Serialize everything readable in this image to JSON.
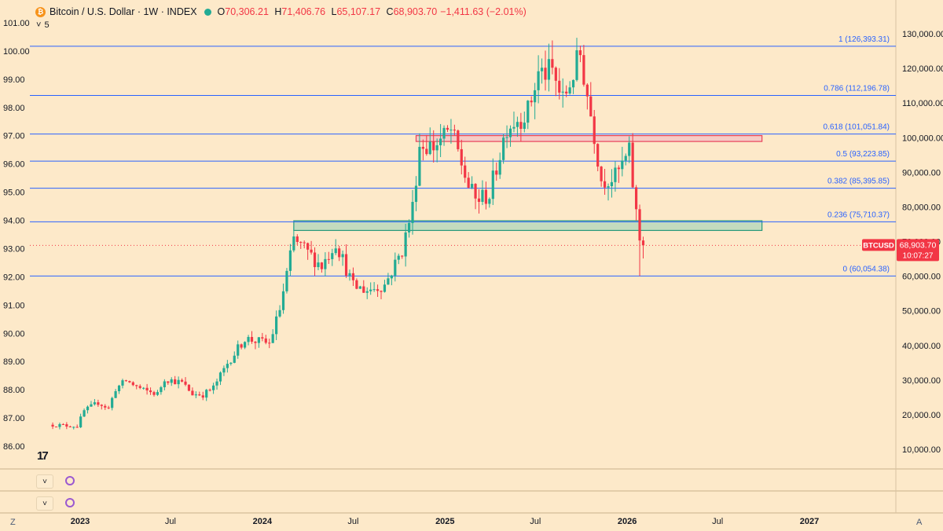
{
  "header": {
    "symbol": "Bitcoin / U.S. Dollar · 1W · INDEX",
    "coin_icon": "bitcoin-icon",
    "open_label": "O",
    "open": "70,306.21",
    "high_label": "H",
    "high": "71,406.76",
    "low_label": "L",
    "low": "65,107.17",
    "close_label": "C",
    "close": "68,903.70",
    "change": "−1,411.63 (−2.01%)",
    "indicator_count": "5"
  },
  "chart_data": {
    "type": "candlestick",
    "x_axis": {
      "labels": [
        {
          "label": "2023",
          "bold": true,
          "date": "2023-01-01"
        },
        {
          "label": "Jul",
          "bold": false,
          "date": "2023-07-01"
        },
        {
          "label": "2024",
          "bold": true,
          "date": "2024-01-01"
        },
        {
          "label": "Jul",
          "bold": false,
          "date": "2024-07-01"
        },
        {
          "label": "2025",
          "bold": true,
          "date": "2025-01-01"
        },
        {
          "label": "Jul",
          "bold": false,
          "date": "2025-07-01"
        },
        {
          "label": "2026",
          "bold": true,
          "date": "2026-01-01"
        },
        {
          "label": "Jul",
          "bold": false,
          "date": "2026-07-01"
        },
        {
          "label": "2027",
          "bold": true,
          "date": "2027-01-01"
        }
      ]
    },
    "right_axis": {
      "ticks": [
        "10,000.00",
        "20,000.00",
        "30,000.00",
        "40,000.00",
        "50,000.00",
        "60,000.00",
        "70,000.00",
        "80,000.00",
        "90,000.00",
        "100,000.00",
        "110,000.00",
        "120,000.00",
        "130,000.00"
      ],
      "values": [
        10000,
        20000,
        30000,
        40000,
        50000,
        60000,
        70000,
        80000,
        90000,
        100000,
        110000,
        120000,
        130000
      ],
      "range": [
        5000,
        134000
      ]
    },
    "left_axis": {
      "ticks": [
        "86.00",
        "87.00",
        "88.00",
        "89.00",
        "90.00",
        "91.00",
        "92.00",
        "93.00",
        "94.00",
        "95.00",
        "96.00",
        "97.00",
        "98.00",
        "99.00",
        "100.00",
        "101.00"
      ],
      "values": [
        86,
        87,
        88,
        89,
        90,
        91,
        92,
        93,
        94,
        95,
        96,
        97,
        98,
        99,
        100,
        101
      ]
    },
    "fib_levels": [
      {
        "label": "1 (126,393.31)",
        "value": 126393.31
      },
      {
        "label": "0.786 (112,196.78)",
        "value": 112196.78
      },
      {
        "label": "0.618 (101,051.84)",
        "value": 101051.84
      },
      {
        "label": "0.5 (93,223.85)",
        "value": 93223.85
      },
      {
        "label": "0.382 (85,395.85)",
        "value": 85395.85
      },
      {
        "label": "0.236 (75,710.37)",
        "value": 75710.37
      },
      {
        "label": "0 (60,054.38)",
        "value": 60054.38
      }
    ],
    "zones": [
      {
        "name": "resistance",
        "from_date": "2024-11-04",
        "to_date": "2026-09-28",
        "low": 98900,
        "high": 100600,
        "fill": "#f5c6c4",
        "stroke": "#e8435a"
      },
      {
        "name": "support",
        "from_date": "2024-03-04",
        "to_date": "2026-09-28",
        "low": 73200,
        "high": 76000,
        "fill": "#b9d8bc",
        "stroke": "#2a9a7a"
      }
    ],
    "last_price": {
      "label": "BTCUSD",
      "value": 68903.7,
      "price_text": "68,903.70",
      "countdown": "10:07:27"
    },
    "anchors": [
      {
        "date": "2022-11-07",
        "price": 17100
      },
      {
        "date": "2022-12-05",
        "price": 16900
      },
      {
        "date": "2023-01-02",
        "price": 16700
      },
      {
        "date": "2023-01-16",
        "price": 21100
      },
      {
        "date": "2023-02-13",
        "price": 23500
      },
      {
        "date": "2023-03-06",
        "price": 21800
      },
      {
        "date": "2023-03-20",
        "price": 27500
      },
      {
        "date": "2023-04-10",
        "price": 29800
      },
      {
        "date": "2023-05-15",
        "price": 27000
      },
      {
        "date": "2023-06-12",
        "price": 26000
      },
      {
        "date": "2023-06-26",
        "price": 30400
      },
      {
        "date": "2023-07-31",
        "price": 29200
      },
      {
        "date": "2023-08-21",
        "price": 26000
      },
      {
        "date": "2023-09-11",
        "price": 25800
      },
      {
        "date": "2023-10-02",
        "price": 27800
      },
      {
        "date": "2023-10-30",
        "price": 34800
      },
      {
        "date": "2023-12-04",
        "price": 42000
      },
      {
        "date": "2024-01-22",
        "price": 40500
      },
      {
        "date": "2024-02-12",
        "price": 50500
      },
      {
        "date": "2024-03-11",
        "price": 70500
      },
      {
        "date": "2024-05-06",
        "price": 63000
      },
      {
        "date": "2024-06-03",
        "price": 70000
      },
      {
        "date": "2024-07-08",
        "price": 57000
      },
      {
        "date": "2024-08-05",
        "price": 56000
      },
      {
        "date": "2024-09-09",
        "price": 57500
      },
      {
        "date": "2024-10-14",
        "price": 67500
      },
      {
        "date": "2024-11-04",
        "price": 80000
      },
      {
        "date": "2024-11-18",
        "price": 98000
      },
      {
        "date": "2024-12-16",
        "price": 97500
      },
      {
        "date": "2025-01-20",
        "price": 102000
      },
      {
        "date": "2025-02-24",
        "price": 86000
      },
      {
        "date": "2025-03-10",
        "price": 82000
      },
      {
        "date": "2025-04-07",
        "price": 83500
      },
      {
        "date": "2025-05-12",
        "price": 103500
      },
      {
        "date": "2025-06-23",
        "price": 107500
      },
      {
        "date": "2025-07-14",
        "price": 118500
      },
      {
        "date": "2025-08-11",
        "price": 119000
      },
      {
        "date": "2025-09-01",
        "price": 110500
      },
      {
        "date": "2025-10-06",
        "price": 124000
      },
      {
        "date": "2025-11-03",
        "price": 101000
      },
      {
        "date": "2025-11-17",
        "price": 88000
      },
      {
        "date": "2025-12-15",
        "price": 88500
      },
      {
        "date": "2026-01-12",
        "price": 95500
      },
      {
        "date": "2026-01-26",
        "price": 78000
      },
      {
        "date": "2026-02-09",
        "price": 68903.7
      }
    ]
  },
  "panes": [
    {
      "collapse_label": "˅",
      "icon": "refresh-icon"
    },
    {
      "collapse_label": "˅",
      "icon": "refresh-icon"
    }
  ],
  "footer": {
    "left_button": "Z",
    "right_button": "A"
  },
  "branding": {
    "logo": "TV"
  },
  "colors": {
    "up": "#22ab94",
    "down": "#f23645",
    "fib_line": "#2962ff",
    "fib_text": "#2962ff",
    "background": "#fde9c9"
  }
}
